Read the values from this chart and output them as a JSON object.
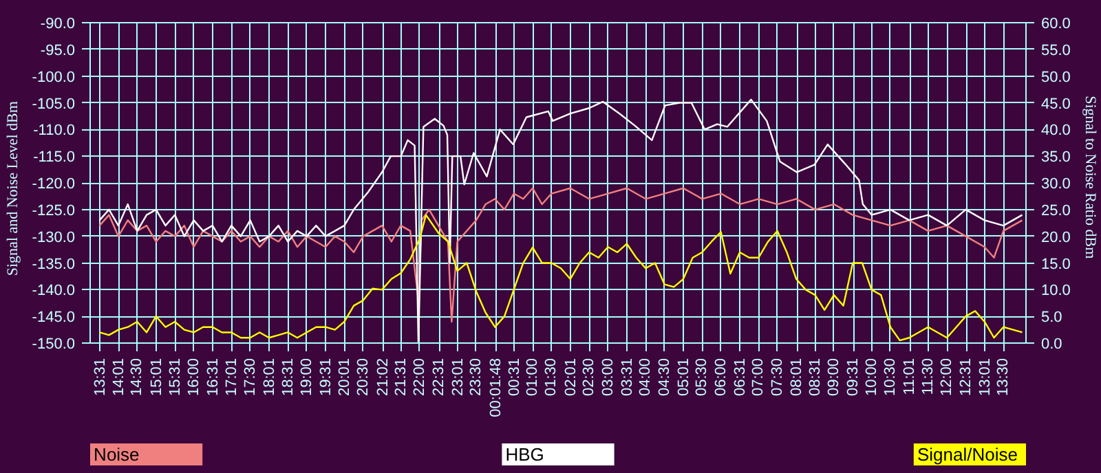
{
  "chart_data": {
    "type": "line",
    "ylabel": "Signal and Noise Level    dBm",
    "y2label": "Signal to Noise Ratio    dBm",
    "xlim": [
      "2000-01-01T13:15",
      "2000-01-02T14:06"
    ],
    "xticks": [
      {
        "value": "2000-01-01T13:31",
        "label": "13:31"
      },
      {
        "value": "2000-01-01T14:01",
        "label": "14:01"
      },
      {
        "value": "2000-01-01T14:30",
        "label": "14:30"
      },
      {
        "value": "2000-01-01T15:01",
        "label": "15:01"
      },
      {
        "value": "2000-01-01T15:31",
        "label": "15:31"
      },
      {
        "value": "2000-01-01T16:00",
        "label": "16:00"
      },
      {
        "value": "2000-01-01T16:31",
        "label": "16:31"
      },
      {
        "value": "2000-01-01T17:01",
        "label": "17:01"
      },
      {
        "value": "2000-01-01T17:30",
        "label": "17:30"
      },
      {
        "value": "2000-01-01T18:01",
        "label": "18:01"
      },
      {
        "value": "2000-01-01T18:31",
        "label": "18:31"
      },
      {
        "value": "2000-01-01T19:00",
        "label": "19:00"
      },
      {
        "value": "2000-01-01T19:31",
        "label": "19:31"
      },
      {
        "value": "2000-01-01T20:01",
        "label": "20:01"
      },
      {
        "value": "2000-01-01T20:30",
        "label": "20:30"
      },
      {
        "value": "2000-01-01T21:02",
        "label": "21:02"
      },
      {
        "value": "2000-01-01T21:31",
        "label": "21:31"
      },
      {
        "value": "2000-01-01T22:00",
        "label": "22:00"
      },
      {
        "value": "2000-01-01T22:31",
        "label": "22:31"
      },
      {
        "value": "2000-01-01T23:01",
        "label": "23:01"
      },
      {
        "value": "2000-01-01T23:30",
        "label": "23:30"
      },
      {
        "value": "2000-01-02T00:01:48",
        "label": "00:01:48"
      },
      {
        "value": "2000-01-02T00:31",
        "label": "00:31"
      },
      {
        "value": "2000-01-02T01:00",
        "label": "01:00"
      },
      {
        "value": "2000-01-02T01:30",
        "label": "01:30"
      },
      {
        "value": "2000-01-02T02:01",
        "label": "02:01"
      },
      {
        "value": "2000-01-02T02:30",
        "label": "02:30"
      },
      {
        "value": "2000-01-02T03:00",
        "label": "03:00"
      },
      {
        "value": "2000-01-02T03:31",
        "label": "03:31"
      },
      {
        "value": "2000-01-02T04:00",
        "label": "04:00"
      },
      {
        "value": "2000-01-02T04:30",
        "label": "04:30"
      },
      {
        "value": "2000-01-02T05:01",
        "label": "05:01"
      },
      {
        "value": "2000-01-02T05:30",
        "label": "05:30"
      },
      {
        "value": "2000-01-02T06:00",
        "label": "06:00"
      },
      {
        "value": "2000-01-02T06:31",
        "label": "06:31"
      },
      {
        "value": "2000-01-02T07:00",
        "label": "07:00"
      },
      {
        "value": "2000-01-02T07:30",
        "label": "07:30"
      },
      {
        "value": "2000-01-02T08:01",
        "label": "08:01"
      },
      {
        "value": "2000-01-02T08:31",
        "label": "08:31"
      },
      {
        "value": "2000-01-02T09:00",
        "label": "09:00"
      },
      {
        "value": "2000-01-02T09:31",
        "label": "09:31"
      },
      {
        "value": "2000-01-02T10:00",
        "label": "10:00"
      },
      {
        "value": "2000-01-02T10:30",
        "label": "10:30"
      },
      {
        "value": "2000-01-02T11:01",
        "label": "11:01"
      },
      {
        "value": "2000-01-02T11:30",
        "label": "11:30"
      },
      {
        "value": "2000-01-02T12:00",
        "label": "12:00"
      },
      {
        "value": "2000-01-02T12:31",
        "label": "12:31"
      },
      {
        "value": "2000-01-02T13:01",
        "label": "13:01"
      },
      {
        "value": "2000-01-02T13:30",
        "label": "13:30"
      }
    ],
    "ylim": [
      -150,
      -90
    ],
    "yticks": [
      {
        "value": -150,
        "label": "-150.0"
      },
      {
        "value": -145,
        "label": "-145.0"
      },
      {
        "value": -140,
        "label": "-140.0"
      },
      {
        "value": -135,
        "label": "-135.0"
      },
      {
        "value": -130,
        "label": "-130.0"
      },
      {
        "value": -125,
        "label": "-125.0"
      },
      {
        "value": -120,
        "label": "-120.0"
      },
      {
        "value": -115,
        "label": "-115.0"
      },
      {
        "value": -110,
        "label": "-110.0"
      },
      {
        "value": -105,
        "label": "-105.0"
      },
      {
        "value": -100,
        "label": "-100.0"
      },
      {
        "value": -95,
        "label": "-95.0"
      },
      {
        "value": -90,
        "label": "-90.0"
      }
    ],
    "y2lim": [
      0,
      60
    ],
    "y2ticks": [
      {
        "value": 0,
        "label": "0.0"
      },
      {
        "value": 5,
        "label": "5.0"
      },
      {
        "value": 10,
        "label": "10.0"
      },
      {
        "value": 15,
        "label": "15.0"
      },
      {
        "value": 20,
        "label": "20.0"
      },
      {
        "value": 25,
        "label": "25.0"
      },
      {
        "value": 30,
        "label": "30.0"
      },
      {
        "value": 35,
        "label": "35.0"
      },
      {
        "value": 40,
        "label": "40.0"
      },
      {
        "value": 45,
        "label": "45.0"
      },
      {
        "value": 50,
        "label": "50.0"
      },
      {
        "value": 55,
        "label": "55.0"
      },
      {
        "value": 60,
        "label": "60.0"
      }
    ],
    "grid": true,
    "legend": "bottom",
    "series": [
      {
        "name": "Noise",
        "color": "#f08080",
        "x": [
          "2000-01-01T13:30",
          "2000-01-01T13:45",
          "2000-01-01T14:00",
          "2000-01-01T14:15",
          "2000-01-01T14:30",
          "2000-01-01T14:45",
          "2000-01-01T15:00",
          "2000-01-01T15:15",
          "2000-01-01T15:30",
          "2000-01-01T15:45",
          "2000-01-01T16:00",
          "2000-01-01T16:15",
          "2000-01-01T16:30",
          "2000-01-01T16:45",
          "2000-01-01T17:00",
          "2000-01-01T17:15",
          "2000-01-01T17:30",
          "2000-01-01T17:45",
          "2000-01-01T18:00",
          "2000-01-01T18:15",
          "2000-01-01T18:30",
          "2000-01-01T18:45",
          "2000-01-01T19:00",
          "2000-01-01T19:15",
          "2000-01-01T19:30",
          "2000-01-01T19:45",
          "2000-01-01T20:00",
          "2000-01-01T20:15",
          "2000-01-01T20:30",
          "2000-01-01T20:45",
          "2000-01-01T21:00",
          "2000-01-01T21:15",
          "2000-01-01T21:30",
          "2000-01-01T21:45",
          "2000-01-01T21:58",
          "2000-01-01T22:03",
          "2000-01-01T22:15",
          "2000-01-01T22:30",
          "2000-01-01T22:45",
          "2000-01-01T22:51",
          "2000-01-01T23:00",
          "2000-01-01T23:15",
          "2000-01-01T23:30",
          "2000-01-01T23:45",
          "2000-01-02T00:00",
          "2000-01-02T00:15",
          "2000-01-02T00:30",
          "2000-01-02T00:45",
          "2000-01-02T01:00",
          "2000-01-02T01:15",
          "2000-01-02T01:30",
          "2000-01-02T02:00",
          "2000-01-02T02:30",
          "2000-01-02T03:00",
          "2000-01-02T03:30",
          "2000-01-02T04:00",
          "2000-01-02T04:30",
          "2000-01-02T05:00",
          "2000-01-02T05:30",
          "2000-01-02T06:00",
          "2000-01-02T06:30",
          "2000-01-02T07:00",
          "2000-01-02T07:30",
          "2000-01-02T08:00",
          "2000-01-02T08:30",
          "2000-01-02T09:00",
          "2000-01-02T09:30",
          "2000-01-02T10:00",
          "2000-01-02T10:30",
          "2000-01-02T11:00",
          "2000-01-02T11:30",
          "2000-01-02T12:00",
          "2000-01-02T12:30",
          "2000-01-02T13:00",
          "2000-01-02T13:15",
          "2000-01-02T13:30",
          "2000-01-02T14:00"
        ],
        "values": [
          -128,
          -126,
          -130,
          -127,
          -129,
          -128,
          -131,
          -129,
          -130,
          -128,
          -132,
          -129,
          -130,
          -131,
          -129,
          -131,
          -130,
          -132,
          -130,
          -131,
          -129,
          -132,
          -130,
          -131,
          -132,
          -130,
          -131,
          -133,
          -130,
          -129,
          -128,
          -131,
          -128,
          -129,
          -142,
          -127,
          -125,
          -128,
          -131,
          -146,
          -131,
          -129,
          -127,
          -124,
          -123,
          -125,
          -122,
          -123,
          -121,
          -124,
          -122,
          -121,
          -123,
          -122,
          -121,
          -123,
          -122,
          -121,
          -123,
          -122,
          -124,
          -123,
          -124,
          -123,
          -125,
          -124,
          -126,
          -127,
          -128,
          -127,
          -129,
          -128,
          -130,
          -132,
          -134,
          -129,
          -127
        ]
      },
      {
        "name": "HBG",
        "color": "#ffffff",
        "x": [
          "2000-01-01T13:30",
          "2000-01-01T13:45",
          "2000-01-01T14:00",
          "2000-01-01T14:15",
          "2000-01-01T14:30",
          "2000-01-01T14:45",
          "2000-01-01T15:00",
          "2000-01-01T15:15",
          "2000-01-01T15:30",
          "2000-01-01T15:45",
          "2000-01-01T16:00",
          "2000-01-01T16:15",
          "2000-01-01T16:30",
          "2000-01-01T16:45",
          "2000-01-01T17:00",
          "2000-01-01T17:15",
          "2000-01-01T17:30",
          "2000-01-01T17:45",
          "2000-01-01T18:00",
          "2000-01-01T18:15",
          "2000-01-01T18:30",
          "2000-01-01T18:45",
          "2000-01-01T19:00",
          "2000-01-01T19:15",
          "2000-01-01T19:30",
          "2000-01-01T19:45",
          "2000-01-01T20:00",
          "2000-01-01T20:15",
          "2000-01-01T20:38",
          "2000-01-01T21:00",
          "2000-01-01T21:14",
          "2000-01-01T21:30",
          "2000-01-01T21:41",
          "2000-01-01T21:52",
          "2000-01-01T21:58",
          "2000-01-01T22:06",
          "2000-01-01T22:24",
          "2000-01-01T22:38",
          "2000-01-01T22:44",
          "2000-01-01T22:48",
          "2000-01-01T22:52",
          "2000-01-01T23:05",
          "2000-01-01T23:11",
          "2000-01-01T23:26",
          "2000-01-01T23:47",
          "2000-01-02T00:08",
          "2000-01-02T00:29",
          "2000-01-02T00:50",
          "2000-01-02T01:25",
          "2000-01-02T01:32",
          "2000-01-02T02:00",
          "2000-01-02T02:30",
          "2000-01-02T02:52",
          "2000-01-02T03:18",
          "2000-01-02T03:43",
          "2000-01-02T04:10",
          "2000-01-02T04:31",
          "2000-01-02T04:54",
          "2000-01-02T05:13",
          "2000-01-02T05:34",
          "2000-01-02T05:54",
          "2000-01-02T06:10",
          "2000-01-02T06:48",
          "2000-01-02T07:13",
          "2000-01-02T07:34",
          "2000-01-02T08:01",
          "2000-01-02T08:29",
          "2000-01-02T08:50",
          "2000-01-02T09:19",
          "2000-01-02T09:40",
          "2000-01-02T09:46",
          "2000-01-02T10:00",
          "2000-01-02T10:30",
          "2000-01-02T11:00",
          "2000-01-02T11:30",
          "2000-01-02T12:00",
          "2000-01-02T12:30",
          "2000-01-02T13:00",
          "2000-01-02T13:30",
          "2000-01-02T14:00"
        ],
        "values": [
          -127,
          -125,
          -128,
          -124,
          -129,
          -126,
          -125,
          -128,
          -126,
          -130,
          -127,
          -129,
          -128,
          -131,
          -128,
          -130,
          -127,
          -131,
          -130,
          -128,
          -131,
          -129,
          -130,
          -128,
          -130,
          -129,
          -128,
          -125,
          -121.7,
          -118,
          -115,
          -115,
          -112,
          -113,
          -150,
          -109.5,
          -108,
          -109.3,
          -111,
          -135,
          -115,
          -115,
          -120.3,
          -114.4,
          -118.8,
          -110,
          -112.8,
          -107.7,
          -106.6,
          -108.4,
          -107,
          -106,
          -104.8,
          -107,
          -109.3,
          -112,
          -105.5,
          -105,
          -105,
          -110,
          -109,
          -109.5,
          -104.4,
          -108.4,
          -116,
          -118,
          -116.6,
          -112.8,
          -116.6,
          -119.5,
          -124,
          -126,
          -125,
          -127,
          -126,
          -128,
          -125,
          -127,
          -128,
          -126
        ]
      },
      {
        "name": "Signal/Noise",
        "color": "#ffff00",
        "axis": "y2",
        "x": [
          "2000-01-01T13:30",
          "2000-01-01T13:45",
          "2000-01-01T14:00",
          "2000-01-01T14:15",
          "2000-01-01T14:30",
          "2000-01-01T14:45",
          "2000-01-01T15:00",
          "2000-01-01T15:15",
          "2000-01-01T15:30",
          "2000-01-01T15:45",
          "2000-01-01T16:00",
          "2000-01-01T16:15",
          "2000-01-01T16:30",
          "2000-01-01T16:45",
          "2000-01-01T17:00",
          "2000-01-01T17:15",
          "2000-01-01T17:30",
          "2000-01-01T17:45",
          "2000-01-01T18:00",
          "2000-01-01T18:15",
          "2000-01-01T18:30",
          "2000-01-01T18:45",
          "2000-01-01T19:00",
          "2000-01-01T19:15",
          "2000-01-01T19:30",
          "2000-01-01T19:45",
          "2000-01-01T20:00",
          "2000-01-01T20:15",
          "2000-01-01T20:30",
          "2000-01-01T20:45",
          "2000-01-01T21:00",
          "2000-01-01T21:15",
          "2000-01-01T21:30",
          "2000-01-01T21:45",
          "2000-01-01T22:00",
          "2000-01-01T22:10",
          "2000-01-01T22:30",
          "2000-01-01T22:45",
          "2000-01-01T23:00",
          "2000-01-01T23:15",
          "2000-01-01T23:30",
          "2000-01-01T23:45",
          "2000-01-02T00:00",
          "2000-01-02T00:15",
          "2000-01-02T00:30",
          "2000-01-02T00:45",
          "2000-01-02T01:00",
          "2000-01-02T01:15",
          "2000-01-02T01:30",
          "2000-01-02T01:45",
          "2000-01-02T02:00",
          "2000-01-02T02:15",
          "2000-01-02T02:30",
          "2000-01-02T02:45",
          "2000-01-02T03:00",
          "2000-01-02T03:15",
          "2000-01-02T03:30",
          "2000-01-02T03:45",
          "2000-01-02T04:00",
          "2000-01-02T04:15",
          "2000-01-02T04:30",
          "2000-01-02T04:45",
          "2000-01-02T05:00",
          "2000-01-02T05:15",
          "2000-01-02T05:30",
          "2000-01-02T05:45",
          "2000-01-02T06:00",
          "2000-01-02T06:15",
          "2000-01-02T06:30",
          "2000-01-02T06:45",
          "2000-01-02T07:00",
          "2000-01-02T07:15",
          "2000-01-02T07:30",
          "2000-01-02T07:45",
          "2000-01-02T08:00",
          "2000-01-02T08:15",
          "2000-01-02T08:30",
          "2000-01-02T08:45",
          "2000-01-02T09:00",
          "2000-01-02T09:15",
          "2000-01-02T09:30",
          "2000-01-02T09:45",
          "2000-01-02T10:00",
          "2000-01-02T10:15",
          "2000-01-02T10:30",
          "2000-01-02T10:45",
          "2000-01-02T11:00",
          "2000-01-02T11:15",
          "2000-01-02T11:30",
          "2000-01-02T11:45",
          "2000-01-02T12:00",
          "2000-01-02T12:15",
          "2000-01-02T12:30",
          "2000-01-02T12:45",
          "2000-01-02T13:00",
          "2000-01-02T13:15",
          "2000-01-02T13:30",
          "2000-01-02T14:00"
        ],
        "values": [
          2,
          1.5,
          2.5,
          3,
          4,
          2,
          5,
          3,
          4,
          2.5,
          2,
          3,
          3,
          2,
          2,
          1,
          1,
          2,
          1,
          1.5,
          2,
          1,
          2,
          3,
          3,
          2.5,
          4,
          7,
          8,
          10.2,
          10,
          12,
          13.1,
          15.7,
          19.5,
          24,
          20.6,
          19,
          13.5,
          15,
          9.7,
          5.7,
          3,
          5,
          10,
          15,
          17.9,
          15,
          15,
          14,
          12,
          15,
          17,
          16,
          18,
          17,
          18.6,
          16,
          14,
          15,
          11,
          10.5,
          12,
          16,
          17,
          19,
          20.8,
          13,
          17,
          16,
          16,
          19,
          21,
          17,
          12,
          10,
          9,
          6.2,
          9,
          7,
          15,
          15,
          10,
          9,
          3,
          0.5,
          1,
          2,
          3,
          2,
          1,
          3,
          5,
          6,
          4,
          1,
          3,
          2
        ]
      }
    ]
  }
}
